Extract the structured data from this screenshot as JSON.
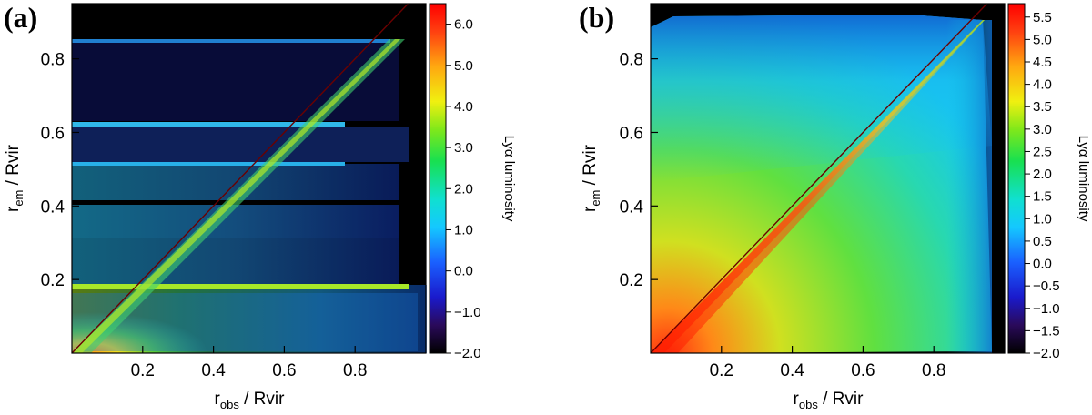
{
  "chart_data": [
    {
      "type": "heatmap",
      "panel_label": "(a)",
      "xlabel": {
        "main": "r",
        "sub": "obs",
        "rest": " / Rvir"
      },
      "ylabel": {
        "main": "r",
        "sub": "em",
        "rest": " / Rvir"
      },
      "xlim": [
        0,
        1
      ],
      "ylim": [
        0,
        0.95
      ],
      "xticks": [
        0.2,
        0.4,
        0.6,
        0.8
      ],
      "yticks": [
        0.2,
        0.4,
        0.6,
        0.8
      ],
      "colorbar": {
        "label": "Lyα luminosity",
        "range": [
          -2.0,
          6.5
        ],
        "ticks": [
          "6.0",
          "5.0",
          "4.0",
          "3.0",
          "2.0",
          "1.0",
          "0.0",
          "−1.0",
          "−2.0"
        ],
        "tick_values": [
          6,
          5,
          4,
          3,
          2,
          1,
          0,
          -1,
          -2
        ]
      },
      "features": {
        "diagonal": "r_em = r_obs",
        "bands_r_em": [
          0.2,
          0.31,
          0.39,
          0.54,
          0.66,
          0.89
        ],
        "max_r_obs": 0.95
      }
    },
    {
      "type": "heatmap",
      "panel_label": "(b)",
      "xlabel": {
        "main": "r",
        "sub": "obs",
        "rest": " / Rvir"
      },
      "ylabel": {
        "main": "r",
        "sub": "em",
        "rest": " / Rvir"
      },
      "xlim": [
        0,
        1
      ],
      "ylim": [
        0,
        0.95
      ],
      "xticks": [
        0.2,
        0.4,
        0.6,
        0.8
      ],
      "yticks": [
        0.2,
        0.4,
        0.6,
        0.8
      ],
      "colorbar": {
        "label": "Lyα luminosity",
        "range": [
          -2.0,
          5.8
        ],
        "ticks": [
          "5.5",
          "5.0",
          "4.5",
          "4.0",
          "3.5",
          "3.0",
          "2.5",
          "2.0",
          "1.5",
          "1.0",
          "0.5",
          "0.0",
          "−0.5",
          "−1.0",
          "−1.5",
          "−2.0"
        ],
        "tick_values": [
          5.5,
          5,
          4.5,
          4,
          3.5,
          3,
          2.5,
          2,
          1.5,
          1,
          0.5,
          0,
          -0.5,
          -1,
          -1.5,
          -2
        ]
      },
      "features": {
        "diagonal": "r_em = r_obs",
        "max_r_obs": 0.95
      }
    }
  ]
}
